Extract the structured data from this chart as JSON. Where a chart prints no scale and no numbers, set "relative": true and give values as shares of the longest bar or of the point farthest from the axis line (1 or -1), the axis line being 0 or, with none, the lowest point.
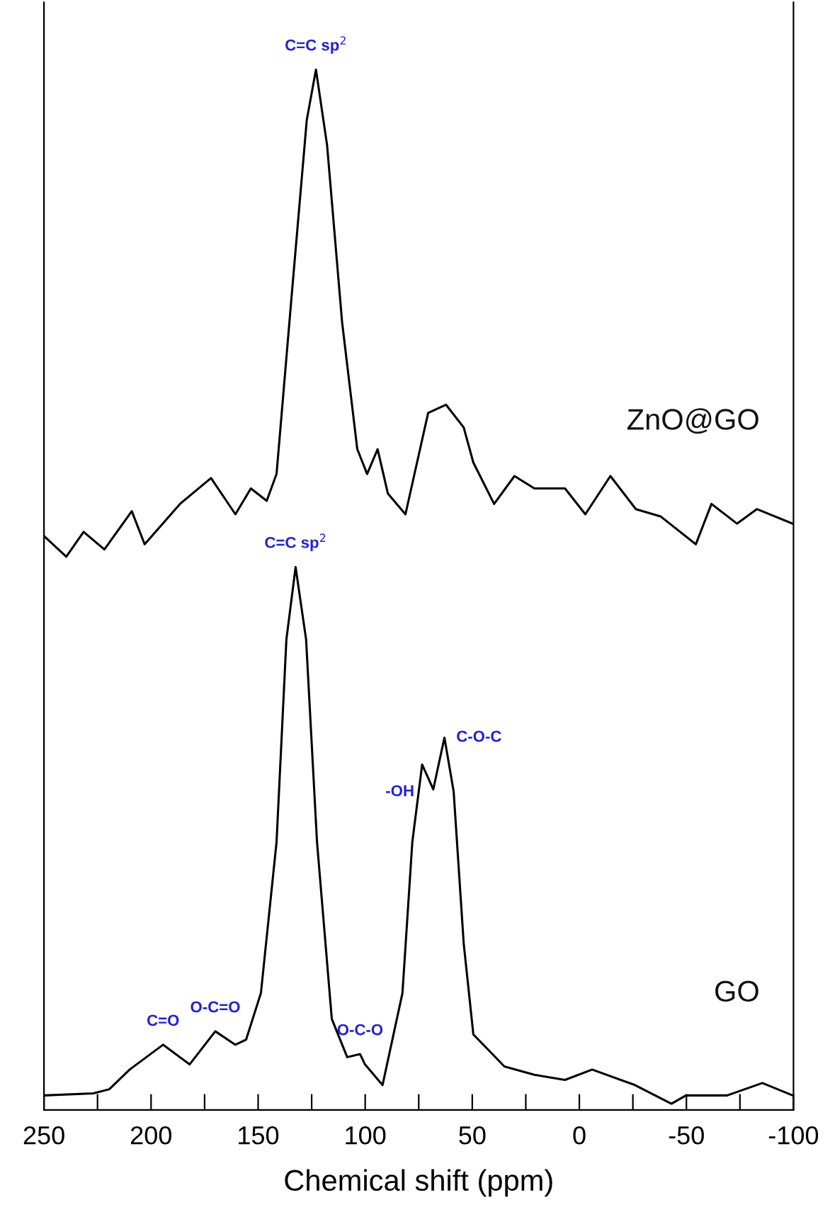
{
  "chart_data": {
    "type": "line",
    "relative": true,
    "xlabel": "Chemical shift (ppm)",
    "xlim": [
      250,
      -100
    ],
    "xticks": [
      250,
      {
        "value": 225,
        "label": null
      },
      200,
      {
        "value": 175,
        "label": null
      },
      150,
      {
        "value": 125,
        "label": null
      },
      100,
      {
        "value": 75,
        "label": null
      },
      50,
      {
        "value": 25,
        "label": null
      },
      0,
      {
        "value": -25,
        "label": null
      },
      -50,
      {
        "value": -75,
        "label": null
      },
      -100
    ],
    "tick_labels": "x",
    "grid": false,
    "legend": false,
    "marker": "none",
    "line_style": "solid",
    "series": [
      {
        "name": "ZnO@GO",
        "color": "#000000",
        "x": [
          250,
          239.6,
          231.5,
          221.8,
          209,
          203,
          186.5,
          172,
          160.6,
          153.4,
          146,
          141.4,
          134.4,
          127.3,
          123,
          117.8,
          110.8,
          103.7,
          99.1,
          94.2,
          89.4,
          81.2,
          70.6,
          62.3,
          54,
          49.5,
          39.8,
          30.3,
          21,
          6.7,
          -2.8,
          -14.5,
          -26.4,
          -37.9,
          -54.4,
          -61.7,
          -73.6,
          -82.9,
          -99.6
        ],
        "values": [
          0.549,
          0.529,
          0.553,
          0.536,
          0.573,
          0.541,
          0.58,
          0.605,
          0.57,
          0.595,
          0.583,
          0.609,
          0.78,
          0.951,
          1,
          0.927,
          0.756,
          0.633,
          0.609,
          0.633,
          0.59,
          0.57,
          0.668,
          0.676,
          0.654,
          0.62,
          0.58,
          0.607,
          0.595,
          0.595,
          0.57,
          0.607,
          0.575,
          0.568,
          0.541,
          0.58,
          0.561,
          0.575,
          0.561
        ]
      },
      {
        "name": "GO",
        "color": "#000000",
        "x": [
          250,
          227,
          219.5,
          210,
          194.4,
          182,
          170,
          160.7,
          155.6,
          148.7,
          141.4,
          136.8,
          132.5,
          127.6,
          122.5,
          115.6,
          108.4,
          102.4,
          100.1,
          91.9,
          82.6,
          78,
          73.4,
          68.2,
          63,
          58.7,
          54,
          49.5,
          35,
          21,
          6.7,
          -6,
          -26,
          -43,
          -49.8,
          -69,
          -85.5,
          -99.6
        ],
        "values": [
          0.008,
          0.01,
          0.014,
          0.033,
          0.057,
          0.038,
          0.07,
          0.057,
          0.062,
          0.107,
          0.253,
          0.449,
          0.519,
          0.449,
          0.253,
          0.082,
          0.045,
          0.048,
          0.038,
          0.018,
          0.107,
          0.253,
          0.328,
          0.304,
          0.354,
          0.302,
          0.155,
          0.067,
          0.036,
          0.028,
          0.023,
          0.033,
          0.018,
          0,
          0.008,
          0.008,
          0.02,
          0.008
        ]
      }
    ],
    "annotations": [
      {
        "text": "C=C sp$^{2}$",
        "x": 123,
        "y": 1
      },
      {
        "text": "C=C sp$^{2}$",
        "x": 132.5,
        "y": 0.519
      },
      {
        "text": "C=O",
        "x": 194.4,
        "y": 0.057
      },
      {
        "text": "O-C=O",
        "x": 170,
        "y": 0.07
      },
      {
        "text": "O-C-O",
        "x": 102.4,
        "y": 0.048
      },
      {
        "text": "-OH",
        "x": 73.4,
        "y": 0.328
      },
      {
        "text": "C-O-C",
        "x": 63,
        "y": 0.354
      }
    ]
  }
}
